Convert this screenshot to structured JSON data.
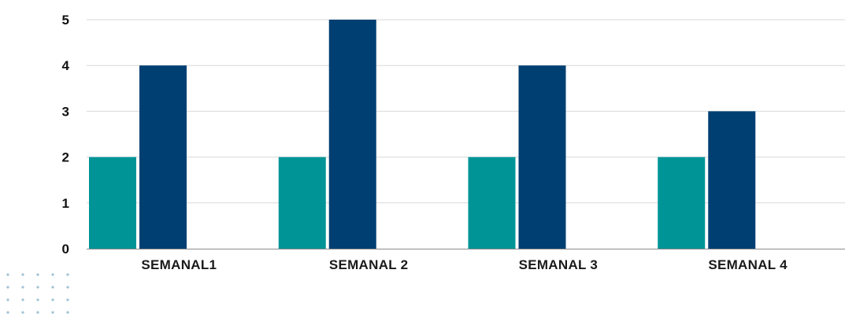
{
  "chart_data": {
    "type": "bar",
    "title": "",
    "xlabel": "",
    "ylabel": "",
    "categories": [
      "SEMANAL1",
      "SEMANAL 2",
      "SEMANAL 3",
      "SEMANAL 4"
    ],
    "series": [
      {
        "values": [
          2,
          2,
          2,
          2
        ],
        "color": "#009497"
      },
      {
        "values": [
          4,
          5,
          4,
          3
        ],
        "color": "#003f72"
      }
    ],
    "ylim": [
      0,
      5
    ],
    "yticks": [
      "0",
      "1",
      "2",
      "3",
      "4",
      "5"
    ],
    "grid": true,
    "legend": "none"
  },
  "decoration": {
    "dot_color": "#9fc2d4"
  }
}
